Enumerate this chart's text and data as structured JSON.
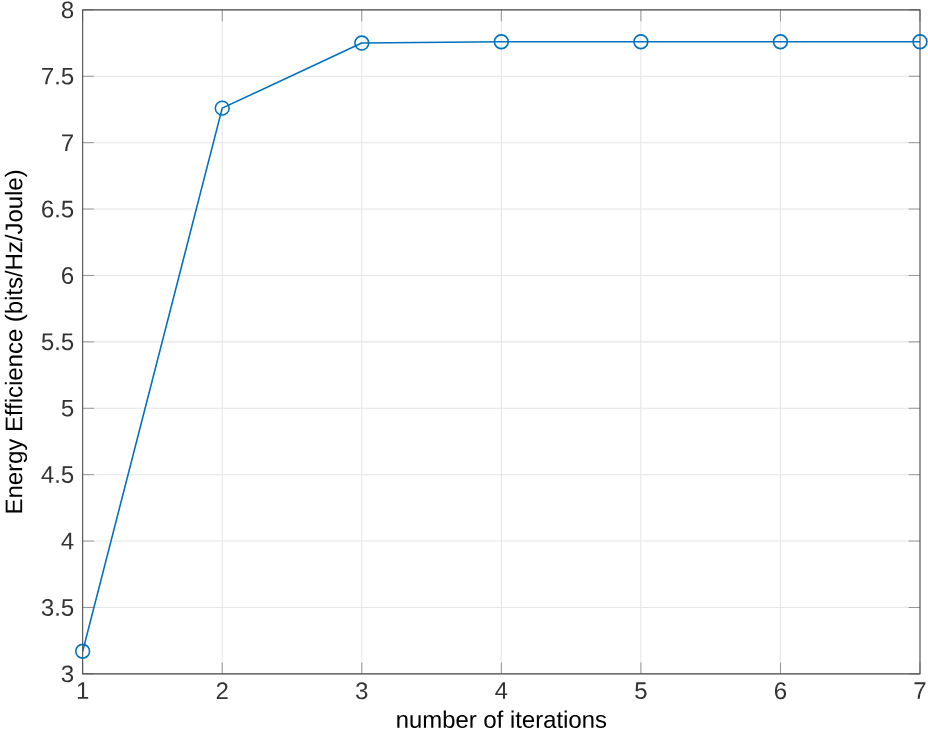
{
  "chart_data": {
    "type": "line",
    "xlabel": "number of iterations",
    "ylabel": "Energy Efficience (bits/Hz/Joule)",
    "x": [
      1,
      2,
      3,
      4,
      5,
      6,
      7
    ],
    "series": [
      {
        "color": "#0072bd",
        "values": [
          3.17,
          7.26,
          7.75,
          7.76,
          7.76,
          7.76,
          7.76
        ]
      }
    ],
    "xlim": [
      1,
      7
    ],
    "xticks": [
      1,
      2,
      3,
      4,
      5,
      6,
      7
    ],
    "ylim": [
      3,
      8
    ],
    "yticks": [
      3,
      3.5,
      4,
      4.5,
      5,
      5.5,
      6,
      6.5,
      7,
      7.5,
      8
    ],
    "grid": true,
    "marker": "circle",
    "line_style": "solid"
  }
}
